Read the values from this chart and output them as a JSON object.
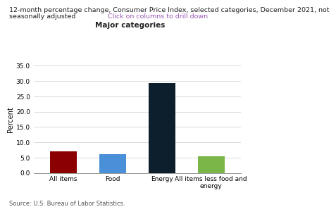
{
  "title_line1": "12-month percentage change, Consumer Price Index, selected categories, December 2021, not",
  "title_line2": "seasonally adjusted",
  "subtitle": "Click on columns to drill down",
  "subtitle_color": "#9b59b6",
  "category_label": "Major categories",
  "ylabel": "Percent",
  "categories": [
    "All items",
    "Food",
    "Energy",
    "All items less food and\nenergy"
  ],
  "values": [
    7.0,
    6.2,
    29.3,
    5.5
  ],
  "bar_colors": [
    "#8b0000",
    "#4a90d9",
    "#0d1f2d",
    "#7ab648"
  ],
  "ylim": [
    0,
    35.0
  ],
  "yticks": [
    0.0,
    5.0,
    10.0,
    15.0,
    20.0,
    25.0,
    30.0,
    35.0
  ],
  "source": "Source: U.S. Bureau of Labor Statistics.",
  "background_color": "#ffffff",
  "title_fontsize": 6.8,
  "subtitle_fontsize": 6.8,
  "ylabel_fontsize": 7.0,
  "tick_fontsize": 6.5,
  "source_fontsize": 6.0,
  "category_label_fontsize": 7.5
}
